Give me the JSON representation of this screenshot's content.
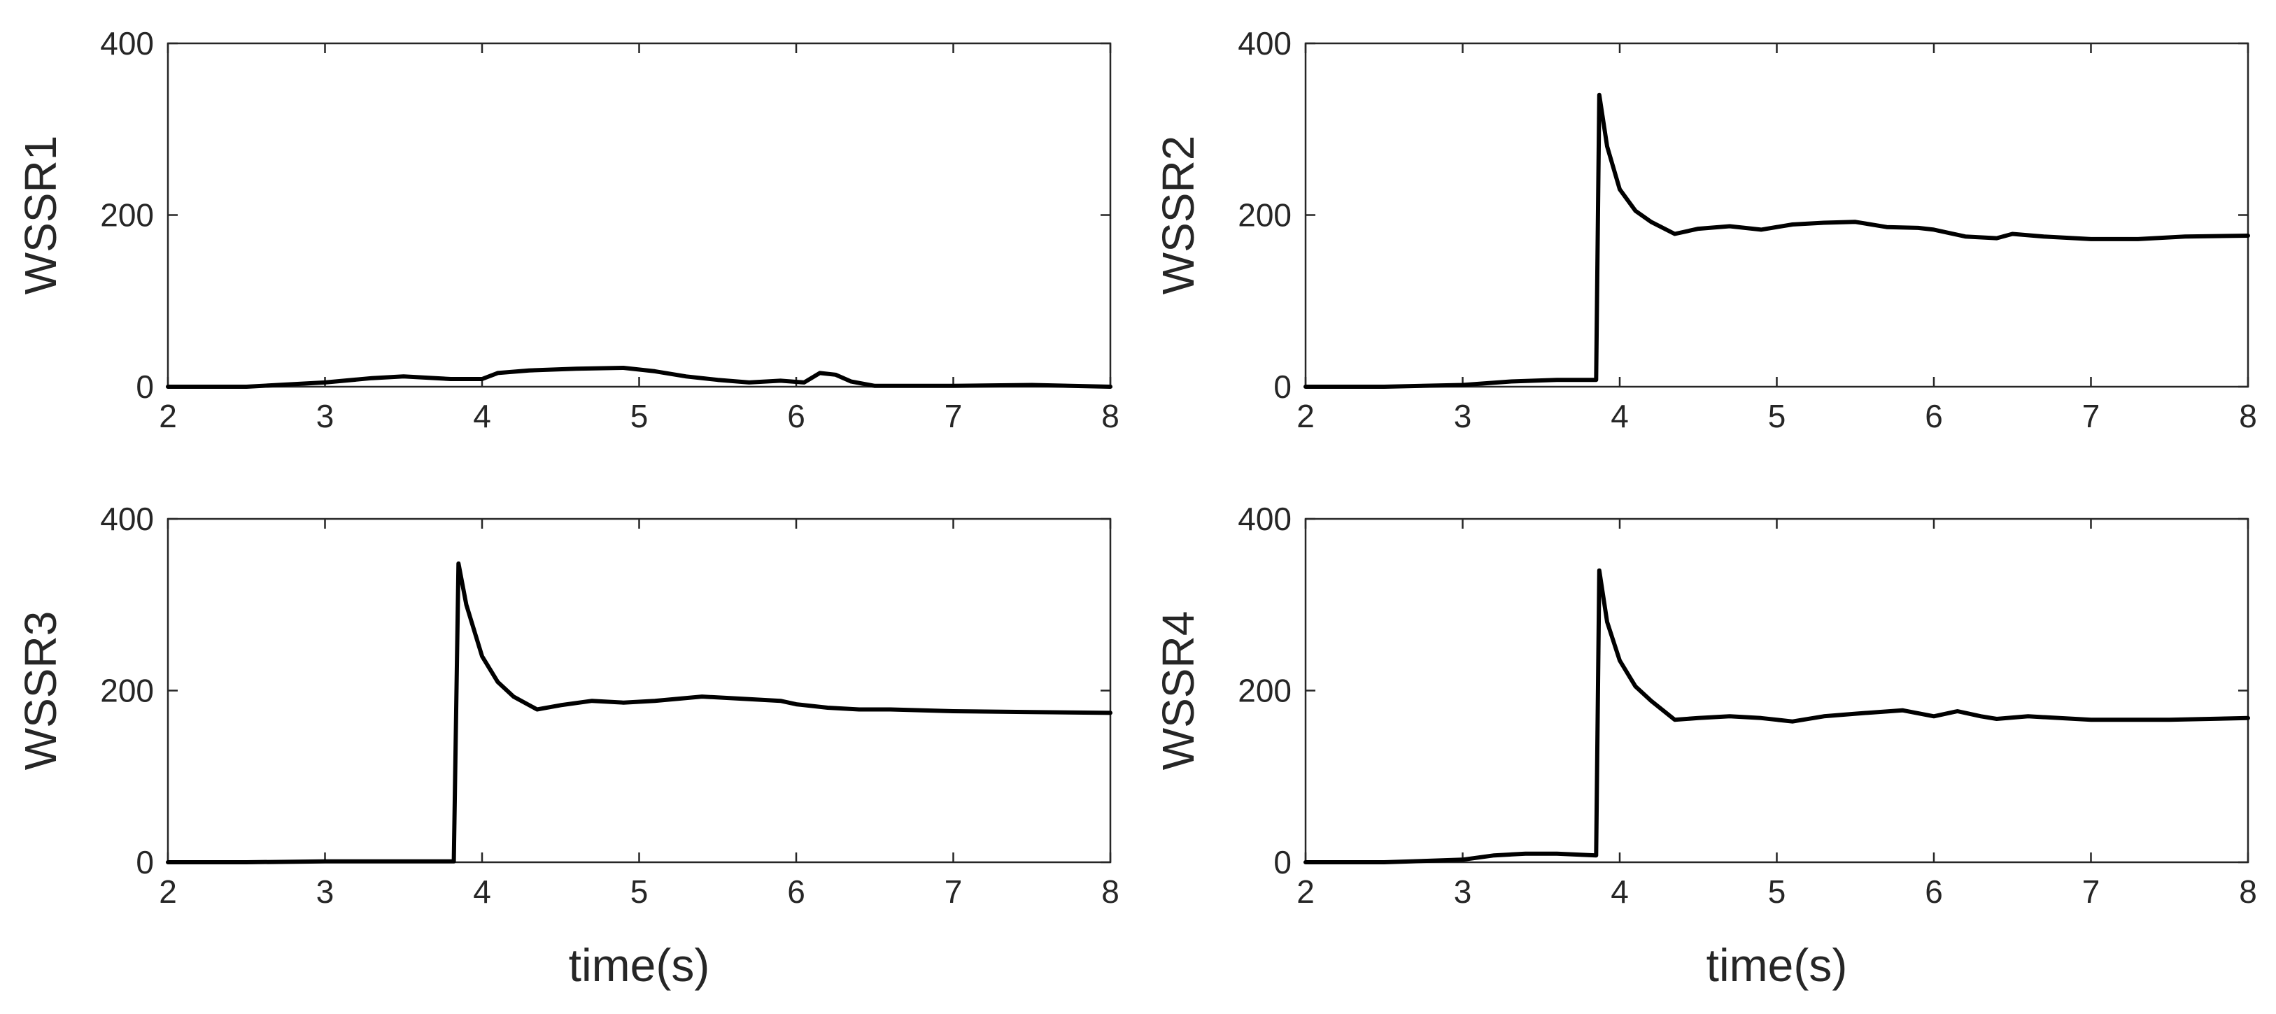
{
  "figure": {
    "line_color": "#000000",
    "axis_color": "#262626",
    "background": "#ffffff"
  },
  "chart_data": [
    {
      "type": "line",
      "position": "top-left",
      "title": "",
      "xlabel": "",
      "ylabel": "WSSR1",
      "xlim": [
        2,
        8
      ],
      "ylim": [
        0,
        400
      ],
      "xticks": [
        "2",
        "3",
        "4",
        "5",
        "6",
        "7",
        "8"
      ],
      "yticks": [
        "0",
        "200",
        "400"
      ],
      "series": [
        {
          "name": "WSSR1",
          "x": [
            2,
            2.5,
            3,
            3.3,
            3.5,
            3.8,
            4,
            4.1,
            4.3,
            4.6,
            4.9,
            5.1,
            5.3,
            5.5,
            5.7,
            5.9,
            6.05,
            6.15,
            6.25,
            6.35,
            6.5,
            7,
            7.5,
            8
          ],
          "y": [
            0,
            0,
            5,
            10,
            12,
            9,
            9,
            16,
            19,
            21,
            22,
            18,
            12,
            8,
            5,
            7,
            5,
            16,
            14,
            6,
            1,
            1,
            2,
            0
          ]
        }
      ]
    },
    {
      "type": "line",
      "position": "top-right",
      "title": "",
      "xlabel": "",
      "ylabel": "WSSR2",
      "xlim": [
        2,
        8
      ],
      "ylim": [
        0,
        400
      ],
      "xticks": [
        "2",
        "3",
        "4",
        "5",
        "6",
        "7",
        "8"
      ],
      "yticks": [
        "0",
        "200",
        "400"
      ],
      "series": [
        {
          "name": "WSSR2",
          "x": [
            2,
            2.5,
            3,
            3.3,
            3.6,
            3.85,
            3.87,
            3.92,
            4.0,
            4.1,
            4.2,
            4.35,
            4.5,
            4.7,
            4.9,
            5.1,
            5.3,
            5.5,
            5.7,
            5.9,
            6.0,
            6.2,
            6.4,
            6.5,
            6.7,
            7.0,
            7.3,
            7.6,
            8.0
          ],
          "y": [
            0,
            0,
            2,
            6,
            8,
            8,
            340,
            280,
            230,
            205,
            192,
            178,
            184,
            187,
            183,
            189,
            191,
            192,
            186,
            185,
            183,
            175,
            173,
            178,
            175,
            172,
            172,
            175,
            176
          ]
        }
      ]
    },
    {
      "type": "line",
      "position": "bottom-left",
      "title": "",
      "xlabel": "time(s)",
      "ylabel": "WSSR3",
      "xlim": [
        2,
        8
      ],
      "ylim": [
        0,
        400
      ],
      "xticks": [
        "2",
        "3",
        "4",
        "5",
        "6",
        "7",
        "8"
      ],
      "yticks": [
        "0",
        "200",
        "400"
      ],
      "series": [
        {
          "name": "WSSR3",
          "x": [
            2,
            2.5,
            3,
            3.5,
            3.82,
            3.85,
            3.9,
            4.0,
            4.1,
            4.2,
            4.35,
            4.5,
            4.7,
            4.9,
            5.1,
            5.4,
            5.7,
            5.9,
            6.0,
            6.2,
            6.4,
            6.6,
            7.0,
            7.5,
            8.0
          ],
          "y": [
            0,
            0,
            1,
            1,
            1,
            348,
            300,
            240,
            210,
            193,
            178,
            183,
            188,
            186,
            188,
            193,
            190,
            188,
            184,
            180,
            178,
            178,
            176,
            175,
            174
          ]
        }
      ]
    },
    {
      "type": "line",
      "position": "bottom-right",
      "title": "",
      "xlabel": "time(s)",
      "ylabel": "WSSR4",
      "xlim": [
        2,
        8
      ],
      "ylim": [
        0,
        400
      ],
      "xticks": [
        "2",
        "3",
        "4",
        "5",
        "6",
        "7",
        "8"
      ],
      "yticks": [
        "0",
        "200",
        "400"
      ],
      "series": [
        {
          "name": "WSSR4",
          "x": [
            2,
            2.5,
            3,
            3.2,
            3.4,
            3.6,
            3.85,
            3.87,
            3.92,
            4.0,
            4.1,
            4.2,
            4.35,
            4.5,
            4.7,
            4.9,
            5.1,
            5.3,
            5.5,
            5.8,
            6.0,
            6.15,
            6.3,
            6.4,
            6.6,
            7.0,
            7.5,
            8.0
          ],
          "y": [
            0,
            0,
            3,
            8,
            10,
            10,
            8,
            340,
            280,
            235,
            205,
            188,
            166,
            168,
            170,
            168,
            164,
            170,
            173,
            177,
            170,
            176,
            170,
            167,
            170,
            166,
            166,
            168
          ]
        }
      ]
    }
  ]
}
